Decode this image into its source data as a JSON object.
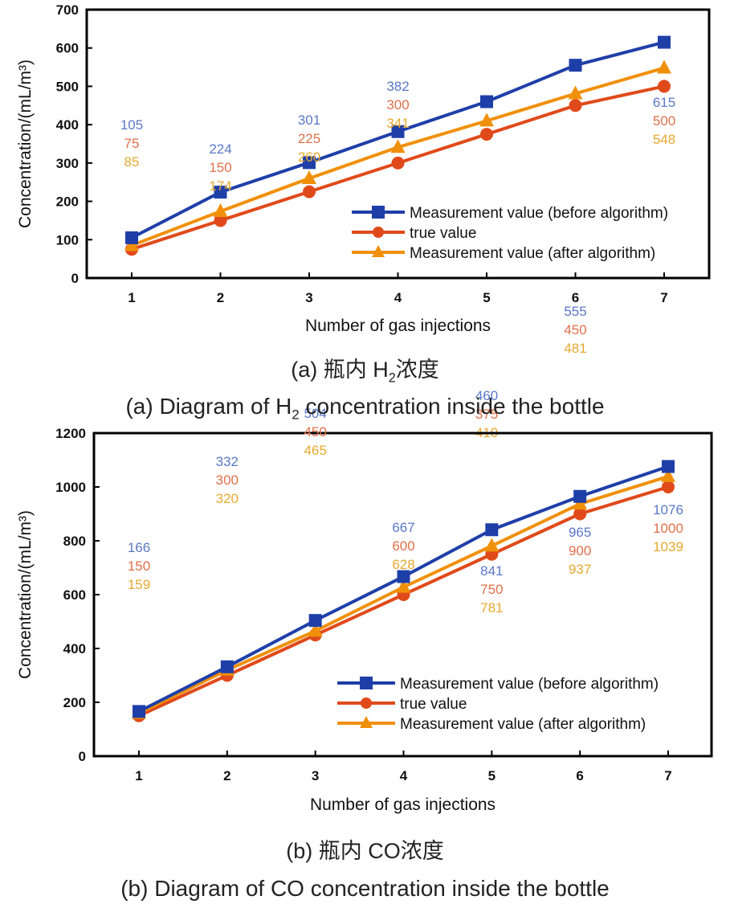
{
  "colors": {
    "before": "#1f3fa8",
    "true": "#e04a1a",
    "after": "#f0900a",
    "before_label": "#5b78c8",
    "true_label": "#e0704a",
    "after_label": "#e6a830"
  },
  "chart_data": [
    {
      "type": "line",
      "title": "(a) Diagram of H2 concentration inside the bottle",
      "xlabel": "Number of gas injections",
      "ylabel": "Concentration/(mL/m³)",
      "x": [
        1,
        2,
        3,
        4,
        5,
        6,
        7
      ],
      "xticks": [
        "1",
        "2",
        "3",
        "4",
        "5",
        "6",
        "7"
      ],
      "ylim": [
        0,
        700
      ],
      "yticks": [
        0,
        100,
        200,
        300,
        400,
        500,
        600,
        700
      ],
      "grid": false,
      "legend_position": "bottom-right",
      "series": [
        {
          "key": "before",
          "name": "Measurement value (before algorithm)",
          "marker": "square",
          "values": [
            105,
            224,
            301,
            382,
            460,
            555,
            615
          ]
        },
        {
          "key": "true",
          "name": "true value",
          "marker": "circle",
          "values": [
            75,
            150,
            225,
            300,
            375,
            450,
            500
          ]
        },
        {
          "key": "after",
          "name": "Measurement value (after algorithm)",
          "marker": "triangle",
          "values": [
            85,
            174,
            260,
            341,
            410,
            481,
            548
          ]
        }
      ]
    },
    {
      "type": "line",
      "title": "(b) Diagram of CO concentration inside the bottle",
      "xlabel": "Number of gas injections",
      "ylabel": "Concentration/(mL/m³)",
      "x": [
        1,
        2,
        3,
        4,
        5,
        6,
        7
      ],
      "xticks": [
        "1",
        "2",
        "3",
        "4",
        "5",
        "6",
        "7"
      ],
      "ylim": [
        0,
        1200
      ],
      "yticks": [
        0,
        200,
        400,
        600,
        800,
        1000,
        1200
      ],
      "grid": false,
      "legend_position": "bottom-right",
      "series": [
        {
          "key": "before",
          "name": "Measurement value (before algorithm)",
          "marker": "square",
          "values": [
            166,
            332,
            504,
            667,
            841,
            965,
            1076
          ]
        },
        {
          "key": "true",
          "name": "true value",
          "marker": "circle",
          "values": [
            150,
            300,
            450,
            600,
            750,
            900,
            1000
          ]
        },
        {
          "key": "after",
          "name": "Measurement value (after algorithm)",
          "marker": "triangle",
          "values": [
            159,
            320,
            465,
            628,
            781,
            937,
            1039
          ]
        }
      ]
    }
  ],
  "captions": {
    "a_cn_prefix": "(a) 瓶内 H",
    "a_cn_sub": "2",
    "a_cn_suffix": "浓度",
    "a_en_prefix": "(a) Diagram of H",
    "a_en_sub": "2",
    "a_en_suffix": " concentration inside the bottle",
    "b_cn": "(b) 瓶内 CO浓度",
    "b_en": "(b) Diagram of CO concentration inside the bottle"
  }
}
